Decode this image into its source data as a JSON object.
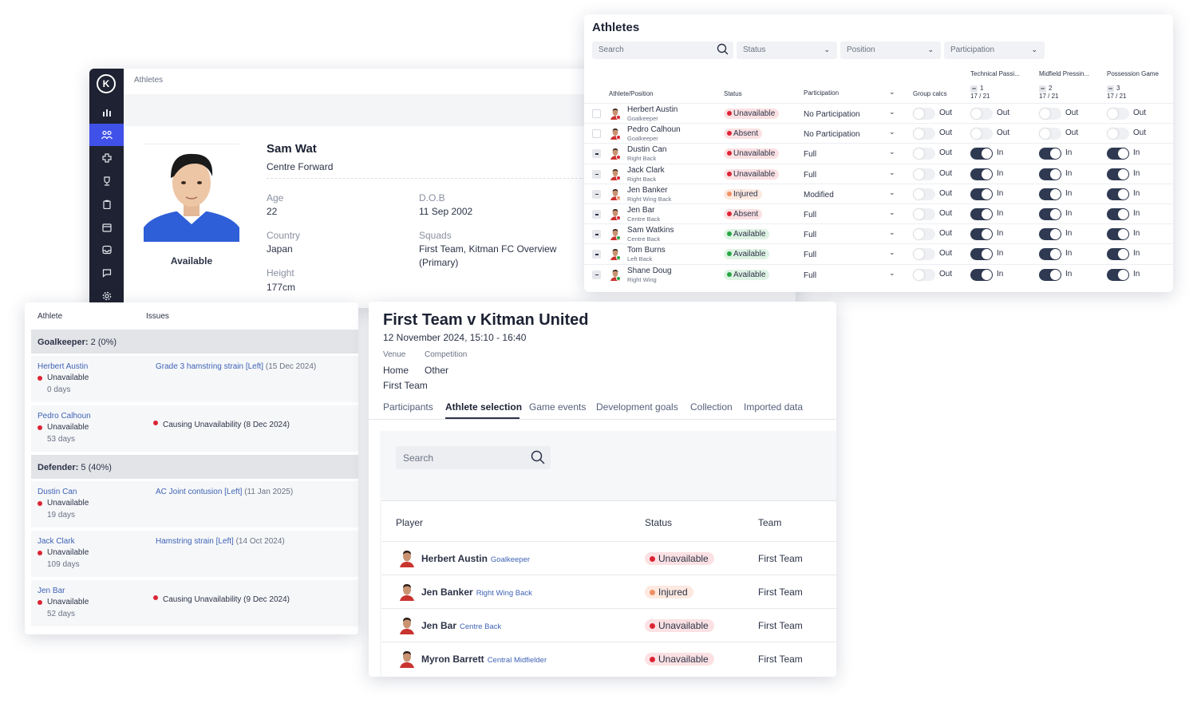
{
  "profile": {
    "breadcrumb": "Athletes",
    "logo": "K",
    "nav_icons": [
      "bar-chart-icon",
      "athletes-icon",
      "medical-cross-icon",
      "trophy-icon",
      "clipboard-icon",
      "calendar-icon",
      "inbox-icon",
      "chat-icon",
      "gear-icon"
    ],
    "name": "Sam Wat",
    "position": "Centre Forward",
    "availability": "Available",
    "age_label": "Age",
    "age": "22",
    "dob_label": "D.O.B",
    "dob": "11 Sep 2002",
    "country_label": "Country",
    "country": "Japan",
    "squads_label": "Squads",
    "squads": "First Team, Kitman FC Overview (Primary)",
    "height_label": "Height",
    "height": "177cm"
  },
  "athletes": {
    "title": "Athletes",
    "search_placeholder": "Search",
    "filters": [
      "Status",
      "Position",
      "Participation"
    ],
    "headers": {
      "athlete": "Athlete/Position",
      "status": "Status",
      "participation": "Participation",
      "group": "Group calcs"
    },
    "groups": [
      {
        "name": "Technical Passi...",
        "num": "1",
        "count": "17 / 21"
      },
      {
        "name": "Midfield Pressin...",
        "num": "2",
        "count": "17 / 21"
      },
      {
        "name": "Possession Game",
        "num": "3",
        "count": "17 / 21"
      }
    ],
    "rows": [
      {
        "name": "Herbert Austin",
        "pos": "Goalkeeper",
        "status": "Unavailable",
        "cls": "unav",
        "part": "No Participation",
        "group": "Out",
        "g1": "Out",
        "g2": "Out",
        "g3": "Out",
        "sel": false
      },
      {
        "name": "Pedro Calhoun",
        "pos": "Goalkeeper",
        "status": "Absent",
        "cls": "abs",
        "part": "No Participation",
        "group": "Out",
        "g1": "Out",
        "g2": "Out",
        "g3": "Out",
        "sel": false
      },
      {
        "name": "Dustin Can",
        "pos": "Right Back",
        "status": "Unavailable",
        "cls": "unav",
        "part": "Full",
        "group": "Out",
        "g1": "In",
        "g2": "In",
        "g3": "In",
        "sel": true
      },
      {
        "name": "Jack Clark",
        "pos": "Right Back",
        "status": "Unavailable",
        "cls": "unav",
        "part": "Full",
        "group": "Out",
        "g1": "In",
        "g2": "In",
        "g3": "In",
        "sel": true
      },
      {
        "name": "Jen Banker",
        "pos": "Right Wing Back",
        "status": "Injured",
        "cls": "inj",
        "part": "Modified",
        "group": "Out",
        "g1": "In",
        "g2": "In",
        "g3": "In",
        "sel": true
      },
      {
        "name": "Jen Bar",
        "pos": "Centre Back",
        "status": "Absent",
        "cls": "abs",
        "part": "Full",
        "group": "Out",
        "g1": "In",
        "g2": "In",
        "g3": "In",
        "sel": true
      },
      {
        "name": "Sam Watkins",
        "pos": "Centre Back",
        "status": "Available",
        "cls": "ok",
        "part": "Full",
        "group": "Out",
        "g1": "In",
        "g2": "In",
        "g3": "In",
        "sel": true
      },
      {
        "name": "Tom Burns",
        "pos": "Left Back",
        "status": "Available",
        "cls": "ok",
        "part": "Full",
        "group": "Out",
        "g1": "In",
        "g2": "In",
        "g3": "In",
        "sel": true
      },
      {
        "name": "Shane Doug",
        "pos": "Right Wing",
        "status": "Available",
        "cls": "ok",
        "part": "Full",
        "group": "Out",
        "g1": "In",
        "g2": "In",
        "g3": "In",
        "sel": true
      }
    ]
  },
  "issues": {
    "headers": {
      "athlete": "Athlete",
      "issues": "Issues"
    },
    "sections": [
      {
        "label": "Goalkeeper:",
        "count": "2 (0%)"
      },
      {
        "label": "Defender:",
        "count": "5 (40%)"
      }
    ],
    "rows": [
      {
        "athlete": "Herbert Austin",
        "status": "Unavailable",
        "days": "0 days",
        "issue": "Grade 3 hamstring strain [Left]",
        "issue_date": "(15 Dec 2024)",
        "cause": ""
      },
      {
        "athlete": "Pedro Calhoun",
        "status": "Unavailable",
        "days": "53 days",
        "issue": "",
        "issue_date": "",
        "cause": "Causing Unavailability (8 Dec 2024)"
      },
      {
        "athlete": "Dustin Can",
        "status": "Unavailable",
        "days": "19 days",
        "issue": "AC Joint contusion [Left]",
        "issue_date": "(11 Jan 2025)",
        "cause": ""
      },
      {
        "athlete": "Jack Clark",
        "status": "Unavailable",
        "days": "109 days",
        "issue": "Hamstring strain [Left]",
        "issue_date": "(14 Oct 2024)",
        "cause": ""
      },
      {
        "athlete": "Jen Bar",
        "status": "Unavailable",
        "days": "52 days",
        "issue": "",
        "issue_date": "",
        "cause": "Causing Unavailability (9 Dec 2024)"
      }
    ]
  },
  "game": {
    "title": "First Team v Kitman United",
    "date": "12 November 2024, 15:10 - 16:40",
    "venue_label": "Venue",
    "venue": "Home",
    "competition_label": "Competition",
    "competition": "Other",
    "team": "First Team",
    "partial_link": "ca",
    "tabs": [
      "Participants",
      "Athlete selection",
      "Game events",
      "Development goals",
      "Collection",
      "Imported data"
    ],
    "search_placeholder": "Search",
    "headers": {
      "player": "Player",
      "status": "Status",
      "team": "Team"
    },
    "rows": [
      {
        "name": "Herbert Austin",
        "pos": "Goalkeeper",
        "status": "Unavailable",
        "cls": "unav",
        "team": "First Team"
      },
      {
        "name": "Jen Banker",
        "pos": "Right Wing Back",
        "status": "Injured",
        "cls": "inj",
        "team": "First Team"
      },
      {
        "name": "Jen Bar",
        "pos": "Centre Back",
        "status": "Unavailable",
        "cls": "unav",
        "team": "First Team"
      },
      {
        "name": "Myron Barrett",
        "pos": "Central Midfielder",
        "status": "Unavailable",
        "cls": "unav",
        "team": "First Team"
      }
    ]
  }
}
